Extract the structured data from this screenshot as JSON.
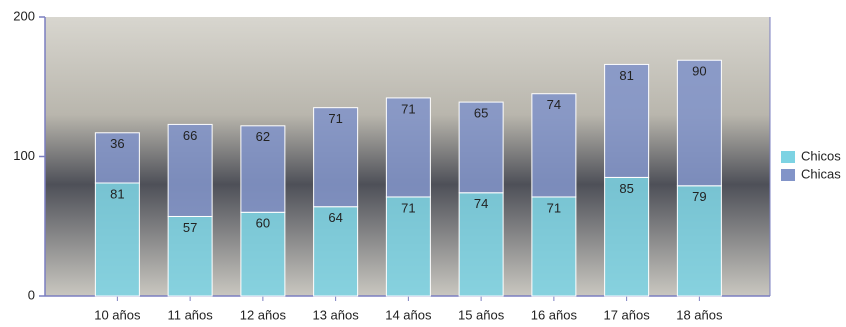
{
  "chart_data": {
    "type": "stacked-bar",
    "categories": [
      "10 años",
      "11 años",
      "12 años",
      "13 años",
      "14 años",
      "15 años",
      "16 años",
      "17 años",
      "18 años"
    ],
    "series": [
      {
        "name": "Chicos",
        "color": "#7dd3e3",
        "values": [
          81,
          57,
          60,
          64,
          71,
          74,
          71,
          85,
          79
        ]
      },
      {
        "name": "Chicas",
        "color": "#8294c8",
        "values": [
          36,
          66,
          62,
          71,
          71,
          65,
          74,
          81,
          90
        ]
      }
    ],
    "ylim": [
      0,
      200
    ],
    "yticks": [
      0,
      100,
      200
    ],
    "legend": "right"
  }
}
